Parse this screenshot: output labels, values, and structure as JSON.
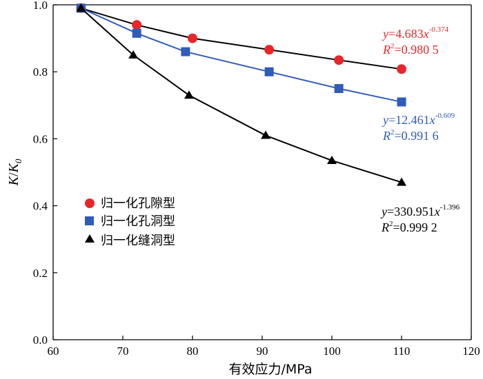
{
  "chart_data": {
    "type": "scatter",
    "title": "",
    "xlabel": "有效应力/MPa",
    "ylabel": "K/K0",
    "ylabel_main": "K",
    "ylabel_sub": "0",
    "xlim": [
      60,
      120
    ],
    "ylim": [
      0,
      1.0
    ],
    "xticks": [
      "60",
      "70",
      "80",
      "90",
      "100",
      "110",
      "120"
    ],
    "yticks": [
      "0.0",
      "0.2",
      "0.4",
      "0.6",
      "0.8",
      "1.0"
    ],
    "grid": false,
    "legend_position": "center-left",
    "series": [
      {
        "name": "归一化孔隙型",
        "marker": "circle",
        "color": "#e8262a",
        "line_color": "#000000",
        "x": [
          64,
          72,
          80,
          91,
          101,
          110
        ],
        "y": [
          0.99,
          0.94,
          0.9,
          0.866,
          0.835,
          0.808
        ],
        "fit": {
          "a": 4.683,
          "b": -0.374
        },
        "annotation": {
          "y_eq_prefix": "y",
          "equals": "=",
          "coef": "4.683",
          "x_var": "x",
          "exponent": "-0.374",
          "r_label": "R",
          "r_sup": "2",
          "r_value": "=0.980 5"
        }
      },
      {
        "name": "归一化孔洞型",
        "marker": "square",
        "color": "#2f5cb8",
        "line_color": "#2f5cb8",
        "x": [
          64,
          72,
          79,
          91,
          101,
          110
        ],
        "y": [
          0.99,
          0.915,
          0.86,
          0.8,
          0.75,
          0.71
        ],
        "fit": {
          "a": 12.461,
          "b": -0.609
        },
        "annotation": {
          "y_eq_prefix": "y",
          "equals": "=",
          "coef": "12.461",
          "x_var": "x",
          "exponent": "-0.609",
          "r_label": "R",
          "r_sup": "2",
          "r_value": "=0.991 6"
        }
      },
      {
        "name": "归一化缝洞型",
        "marker": "triangle",
        "color": "#000000",
        "line_color": "#000000",
        "x": [
          64,
          71.5,
          79.5,
          90.5,
          100,
          110
        ],
        "y": [
          0.99,
          0.85,
          0.73,
          0.61,
          0.535,
          0.47
        ],
        "fit": {
          "a": 330.951,
          "b": -1.396
        },
        "annotation": {
          "y_eq_prefix": "y",
          "equals": "=",
          "coef": "330.951",
          "x_var": "x",
          "exponent": "-1.396",
          "r_label": "R",
          "r_sup": "2",
          "r_value": "=0.999 2"
        }
      }
    ]
  }
}
